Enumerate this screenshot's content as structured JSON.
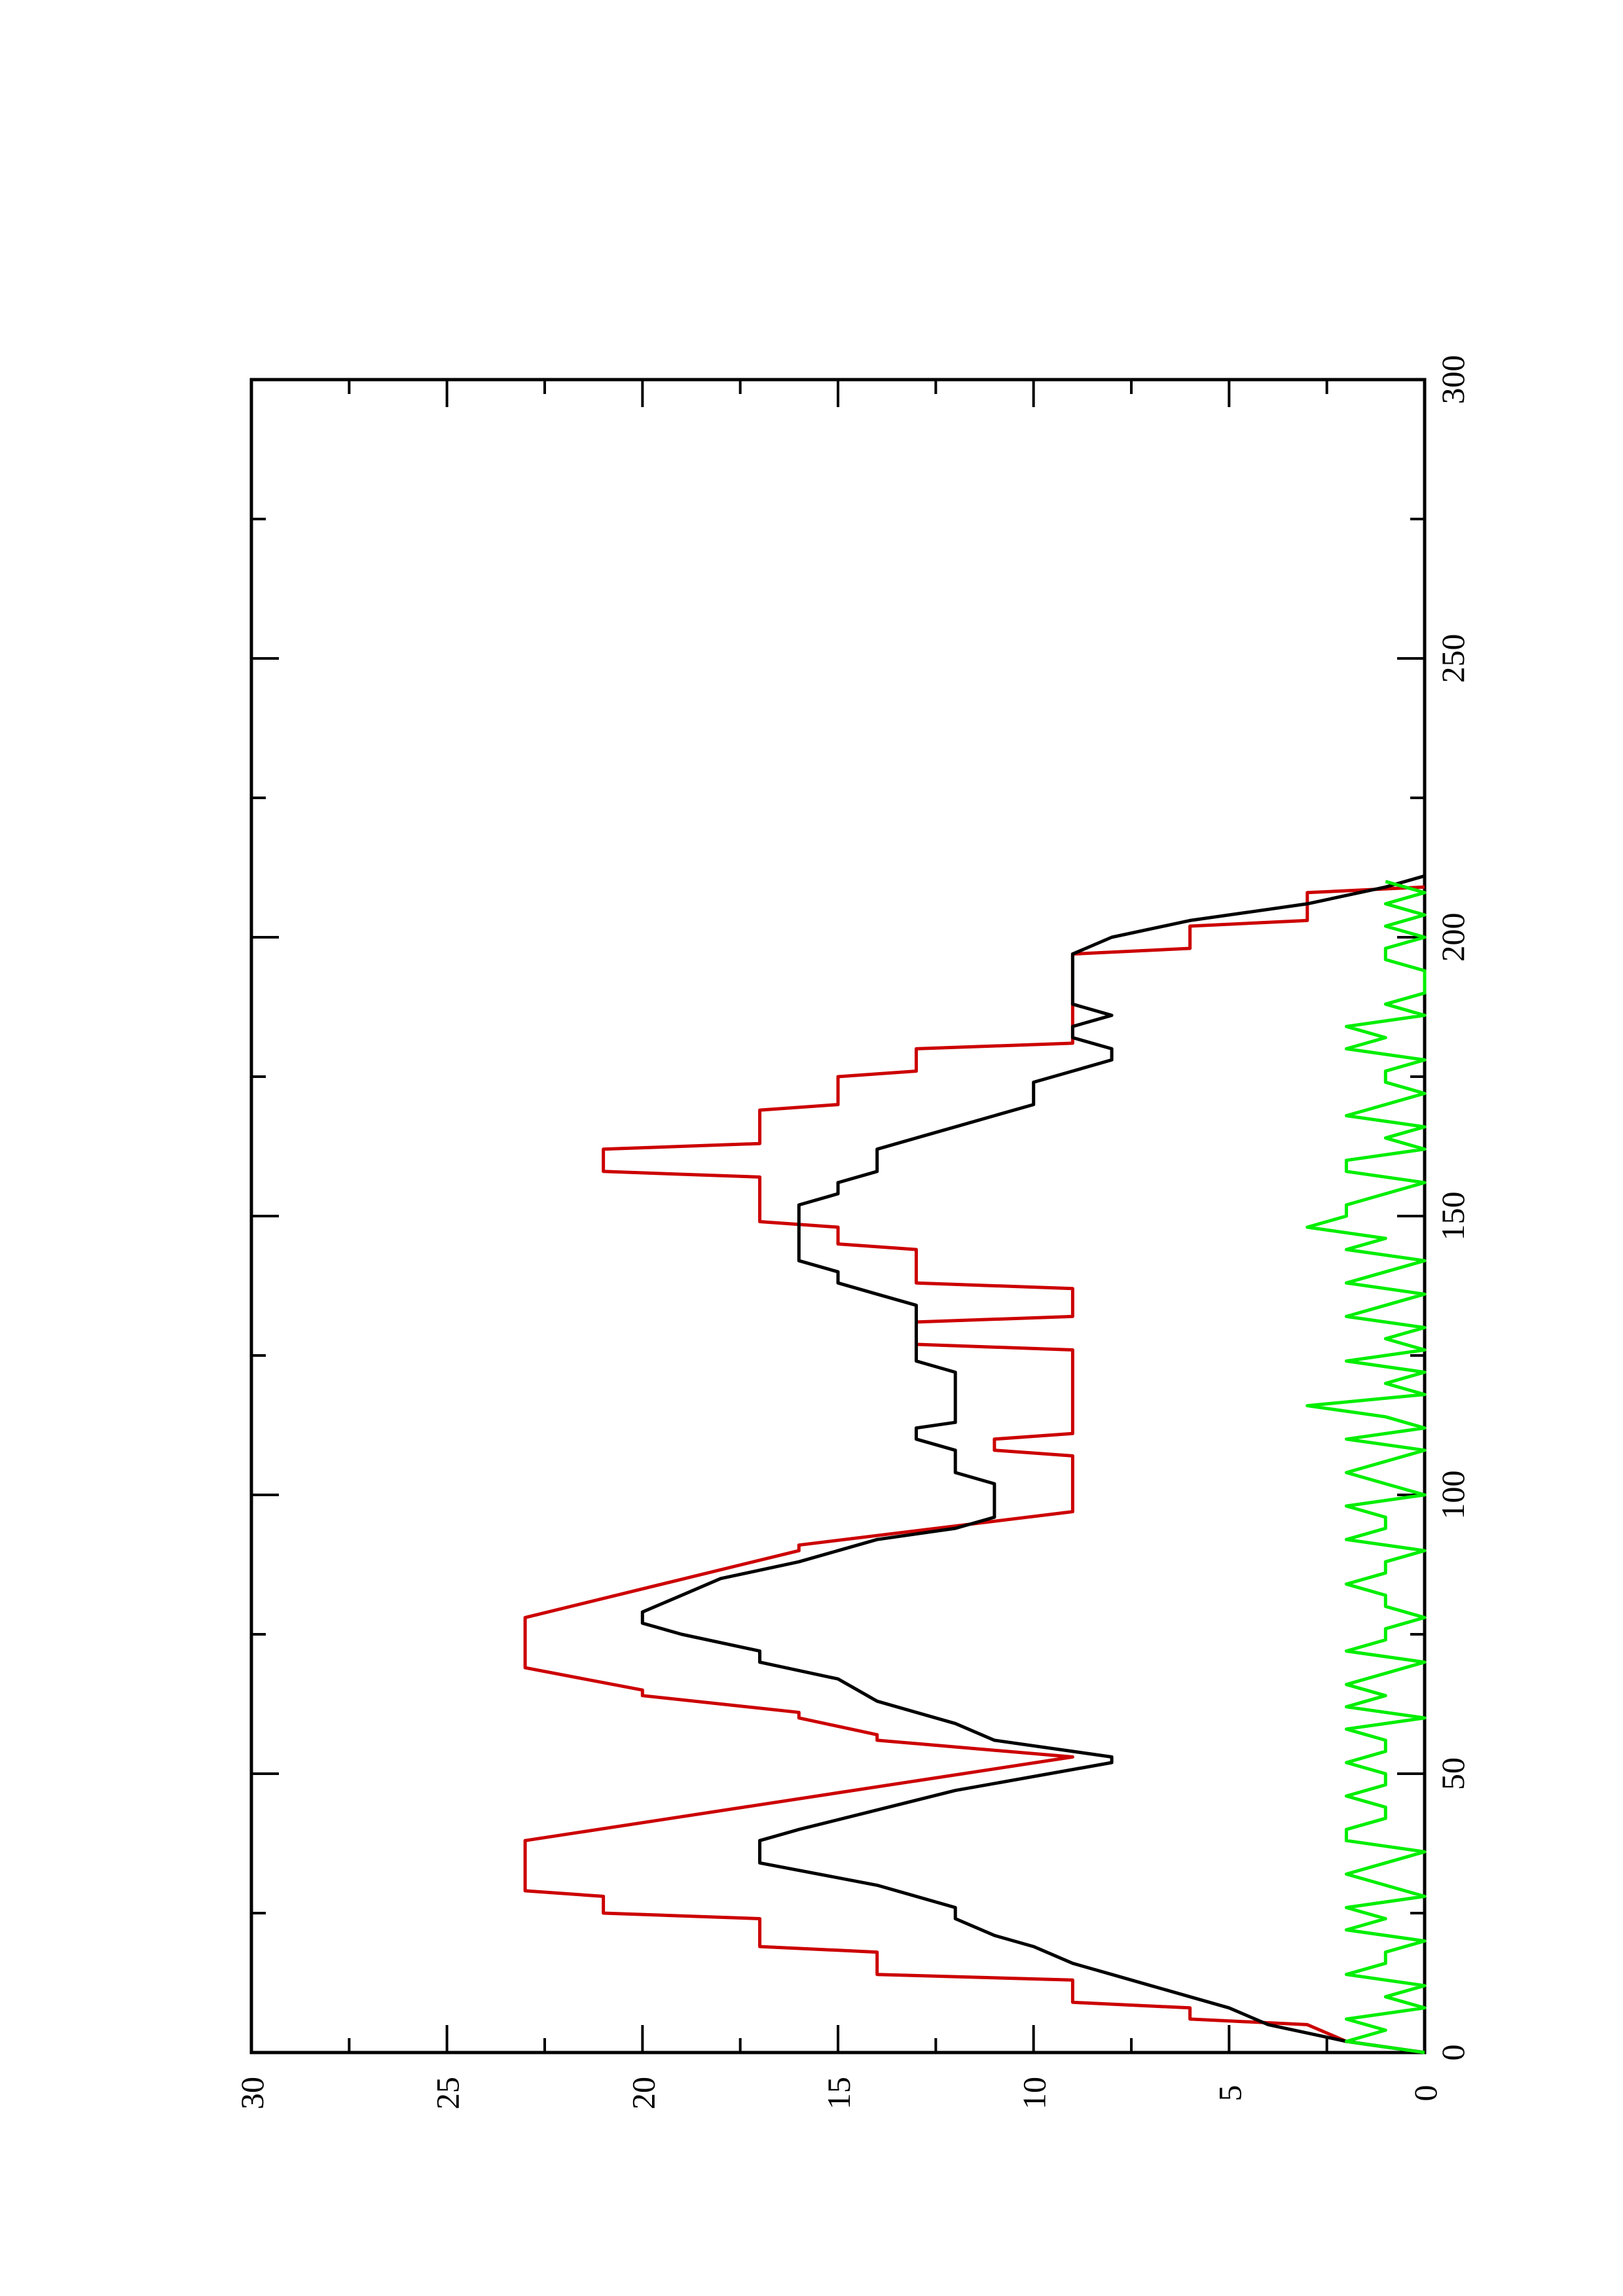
{
  "chart_data": {
    "type": "line",
    "orientation": "rotated-90-ccw",
    "title": "",
    "xlabel": "",
    "ylabel": "",
    "xlim": [
      0,
      300
    ],
    "ylim": [
      0,
      30
    ],
    "x_ticks": [
      0,
      50,
      100,
      150,
      200,
      250,
      300
    ],
    "y_ticks": [
      0,
      5,
      10,
      15,
      20,
      25,
      30
    ],
    "x_tick_labels": [
      "0",
      "50",
      "100",
      "150",
      "200",
      "250",
      "300"
    ],
    "y_tick_labels": [
      "0",
      "5",
      "10",
      "15",
      "20",
      "25",
      "30"
    ],
    "grid": false,
    "legend": "none",
    "series": [
      {
        "color": "#cc0000",
        "x": [
          0,
          2,
          5,
          6,
          8,
          9,
          13,
          14,
          18,
          19,
          24,
          25,
          28,
          29,
          33,
          34,
          38,
          53,
          56,
          57,
          60,
          61,
          64,
          65,
          69,
          70,
          75,
          76,
          78,
          90,
          91,
          97,
          98,
          107,
          108,
          110,
          111,
          114,
          115,
          126,
          127,
          131,
          132,
          135,
          136,
          137,
          138,
          144,
          145,
          148,
          149,
          157,
          158,
          162,
          163,
          169,
          170,
          175,
          176,
          180,
          181,
          184,
          185,
          197,
          198,
          202,
          203,
          208,
          209
        ],
        "y": [
          0,
          2,
          3,
          6,
          6,
          9,
          9,
          14,
          14,
          17,
          17,
          21,
          21,
          23,
          23,
          23,
          23,
          9,
          14,
          14,
          16,
          16,
          20,
          20,
          23,
          23,
          23,
          23,
          23,
          16,
          16,
          9,
          9,
          9,
          11,
          11,
          9,
          9,
          9,
          9,
          13,
          13,
          9,
          9,
          9,
          9,
          13,
          13,
          15,
          15,
          17,
          17,
          21,
          21,
          17,
          17,
          15,
          15,
          13,
          13,
          9,
          9,
          9,
          9,
          6,
          6,
          3,
          3,
          0
        ]
      },
      {
        "color": "#000000",
        "x": [
          0,
          2,
          5,
          8,
          10,
          12,
          14,
          16,
          19,
          21,
          24,
          26,
          30,
          34,
          36,
          38,
          40,
          47,
          52,
          53,
          54,
          56,
          59,
          61,
          63,
          67,
          70,
          72,
          75,
          77,
          79,
          82,
          85,
          88,
          90,
          92,
          94,
          96,
          98,
          100,
          102,
          104,
          108,
          110,
          112,
          113,
          114,
          116,
          118,
          120,
          122,
          124,
          126,
          128,
          130,
          132,
          134,
          136,
          138,
          140,
          142,
          144,
          146,
          148,
          150,
          152,
          154,
          156,
          158,
          160,
          162,
          164,
          166,
          168,
          170,
          172,
          174,
          176,
          178,
          180,
          182,
          184,
          186,
          188,
          190,
          194,
          197,
          200,
          203,
          206,
          209,
          211
        ],
        "y": [
          0,
          2,
          4,
          5,
          6,
          7,
          8,
          9,
          10,
          11,
          12,
          12,
          14,
          17,
          17,
          17,
          16,
          12,
          8,
          8,
          9,
          11,
          12,
          13,
          14,
          15,
          17,
          17,
          19,
          20,
          20,
          19,
          18,
          16,
          15,
          14,
          12,
          11,
          11,
          11,
          11,
          12,
          12,
          13,
          13,
          12,
          12,
          12,
          12,
          12,
          12,
          13,
          13,
          13,
          13,
          13,
          13,
          14,
          15,
          15,
          16,
          16,
          16,
          16,
          16,
          16,
          15,
          15,
          14,
          14,
          14,
          13,
          12,
          11,
          10,
          10,
          10,
          9,
          8,
          8,
          9,
          9,
          8,
          9,
          9,
          9,
          9,
          8,
          6,
          3,
          1,
          0
        ]
      },
      {
        "color": "#00ee00",
        "x": [
          0,
          2,
          4,
          6,
          8,
          10,
          12,
          14,
          16,
          18,
          20,
          22,
          24,
          26,
          28,
          30,
          32,
          34,
          36,
          38,
          40,
          42,
          44,
          46,
          48,
          50,
          52,
          54,
          56,
          58,
          60,
          62,
          64,
          66,
          68,
          70,
          72,
          74,
          76,
          78,
          80,
          82,
          84,
          86,
          88,
          90,
          92,
          94,
          96,
          98,
          100,
          102,
          104,
          106,
          108,
          110,
          112,
          114,
          116,
          118,
          120,
          122,
          124,
          126,
          128,
          130,
          132,
          134,
          136,
          138,
          140,
          142,
          144,
          146,
          148,
          150,
          152,
          154,
          156,
          158,
          160,
          162,
          164,
          166,
          168,
          170,
          172,
          174,
          176,
          178,
          180,
          182,
          184,
          186,
          188,
          190,
          192,
          194,
          196,
          198,
          200,
          202,
          204,
          206,
          208,
          210
        ],
        "y": [
          0,
          2,
          1,
          2,
          0,
          1,
          0,
          2,
          1,
          1,
          0,
          2,
          1,
          2,
          0,
          1,
          2,
          1,
          0,
          2,
          2,
          1,
          1,
          2,
          1,
          1,
          2,
          1,
          1,
          2,
          0,
          2,
          1,
          2,
          1,
          0,
          2,
          1,
          1,
          0,
          1,
          1,
          2,
          1,
          1,
          0,
          2,
          1,
          1,
          2,
          0,
          1,
          2,
          1,
          0,
          2,
          0,
          1,
          3,
          0,
          1,
          0,
          2,
          0,
          1,
          0,
          2,
          1,
          0,
          2,
          1,
          0,
          2,
          1,
          3,
          2,
          2,
          1,
          0,
          2,
          2,
          0,
          1,
          0,
          2,
          1,
          0,
          1,
          1,
          0,
          2,
          1,
          2,
          0,
          1,
          0,
          0,
          0,
          1,
          1,
          0,
          1,
          0,
          1,
          0,
          1
        ]
      }
    ]
  }
}
